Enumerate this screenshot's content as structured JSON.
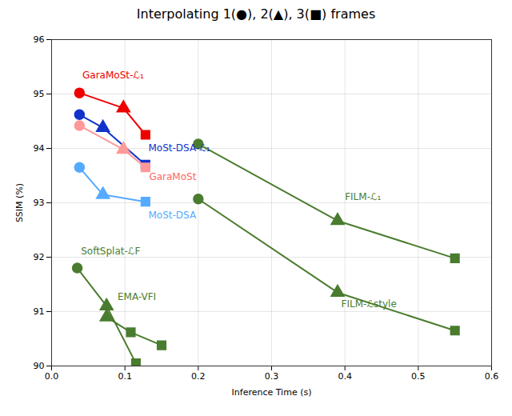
{
  "chart_data": {
    "type": "line",
    "title": "Interpolating 1(●), 2(▲), 3(■) frames",
    "x_label": "Inference Time (s)",
    "y_label": "SSIM (%)",
    "xlim": [
      0,
      0.6
    ],
    "ylim": [
      90,
      96
    ],
    "xticks": [
      {
        "value": 0,
        "label": "0.0"
      },
      0.1,
      0.2,
      0.3,
      0.4,
      0.5,
      0.6
    ],
    "yticks": [
      90,
      91,
      92,
      93,
      94,
      95,
      96
    ],
    "grid": true,
    "series": [
      {
        "color": "#4a7c2f",
        "x": [
          0.2,
          0.39,
          0.55
        ],
        "values": [
          94.08,
          92.67,
          91.98
        ],
        "markers": [
          "circle",
          "triangle",
          "square"
        ]
      },
      {
        "color": "#4a7c2f",
        "x": [
          0.2,
          0.39,
          0.55
        ],
        "values": [
          93.07,
          91.35,
          90.65
        ],
        "markers": [
          "circle",
          "triangle",
          "square"
        ]
      },
      {
        "color": "#4a7c2f",
        "x": [
          0.035,
          0.075,
          0.115
        ],
        "values": [
          91.8,
          91.1,
          90.05
        ],
        "markers": [
          "circle",
          "triangle",
          "square"
        ]
      },
      {
        "color": "#4a7c2f",
        "x": [
          0.075,
          0.108,
          0.15
        ],
        "values": [
          90.9,
          90.62,
          90.38
        ],
        "markers": [
          "triangle",
          "square",
          "square"
        ]
      },
      {
        "color": "#1133CC",
        "x": [
          0.038,
          0.07,
          0.128
        ],
        "values": [
          94.62,
          94.38,
          93.7
        ],
        "markers": [
          "circle",
          "triangle",
          "square"
        ]
      },
      {
        "color": "#55AAFF",
        "x": [
          0.038,
          0.07,
          0.128
        ],
        "values": [
          93.65,
          93.15,
          93.02
        ],
        "markers": [
          "circle",
          "triangle",
          "square"
        ]
      },
      {
        "color": "#FF9999",
        "x": [
          0.038,
          0.098,
          0.128
        ],
        "values": [
          94.42,
          93.98,
          93.65
        ],
        "markers": [
          "circle",
          "triangle",
          "square"
        ]
      },
      {
        "color": "#EE0000",
        "x": [
          0.038,
          0.098,
          0.128
        ],
        "values": [
          95.02,
          94.74,
          94.25
        ],
        "markers": [
          "circle",
          "triangle",
          "square"
        ]
      }
    ],
    "annotations": [
      {
        "text": "GaraMoSt-ℒ₁",
        "x": 0.042,
        "y": 95.28,
        "color": "#EE0000"
      },
      {
        "text": "GaraMoSt",
        "x": 0.133,
        "y": 93.42,
        "color": "#FF6666"
      },
      {
        "text": "MoSt-DSA-ℒ₁",
        "x": 0.132,
        "y": 93.95,
        "color": "#1133CC"
      },
      {
        "text": "MoSt-DSA",
        "x": 0.132,
        "y": 92.72,
        "color": "#55AAFF"
      },
      {
        "text": "FILM-ℒ₁",
        "x": 0.4,
        "y": 93.05,
        "color": "#4a7c2f"
      },
      {
        "text": "FILM-ℒstyle",
        "x": 0.395,
        "y": 91.08,
        "color": "#4a7c2f"
      },
      {
        "text": "SoftSplat-ℒF",
        "x": 0.04,
        "y": 92.05,
        "color": "#4a7c2f"
      },
      {
        "text": "EMA-VFI",
        "x": 0.09,
        "y": 91.22,
        "color": "#4a7c2f"
      }
    ]
  }
}
